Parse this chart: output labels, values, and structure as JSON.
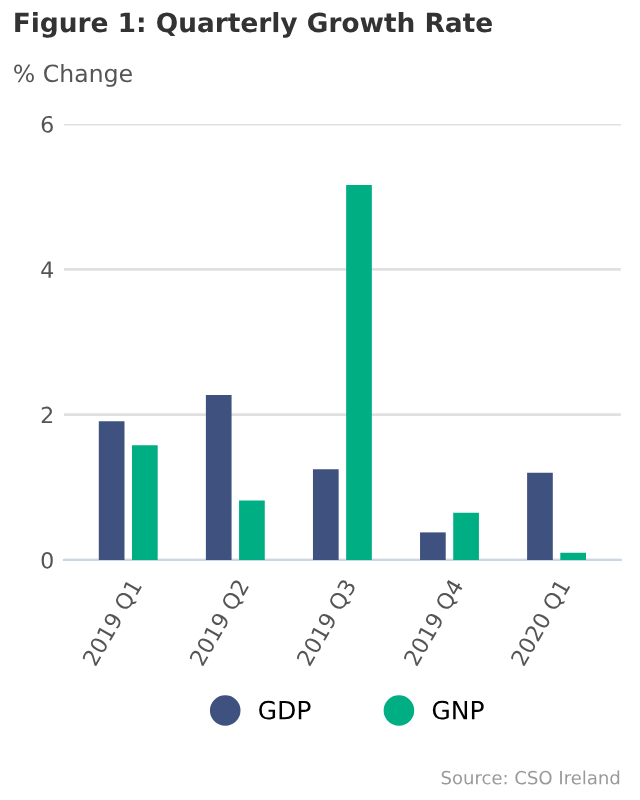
{
  "chart_data": {
    "type": "bar",
    "title": "Figure 1: Quarterly Growth Rate",
    "ylabel": "% Change",
    "categories": [
      "2019 Q1",
      "2019 Q2",
      "2019 Q3",
      "2019 Q4",
      "2020 Q1"
    ],
    "series": [
      {
        "name": "GDP",
        "color": "#3f527f",
        "values": [
          1.91,
          2.27,
          1.25,
          0.38,
          1.2
        ]
      },
      {
        "name": "GNP",
        "color": "#00ae84",
        "values": [
          1.58,
          0.82,
          5.16,
          0.65,
          0.1
        ]
      }
    ],
    "ylim": [
      0,
      6
    ],
    "yticks": [
      0,
      2,
      4,
      6
    ],
    "grid": "y",
    "legend": "bottom",
    "annotations": [
      "Source: CSO Ireland"
    ]
  }
}
